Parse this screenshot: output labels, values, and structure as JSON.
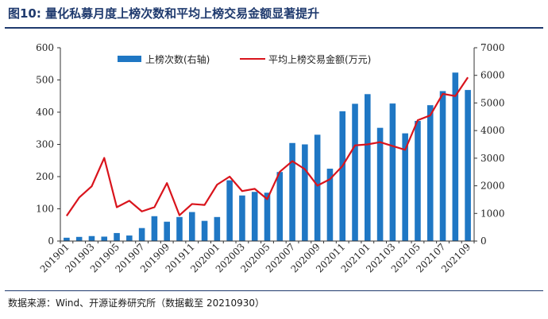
{
  "figure": {
    "title": "图10:  量化私募月度上榜次数和平均上榜交易金额显著提升",
    "source": "数据来源：Wind、开源证券研究所（数据截至 20210930）"
  },
  "chart_data": {
    "type": "bar",
    "categories": [
      "201901",
      "201902",
      "201903",
      "201904",
      "201905",
      "201906",
      "201907",
      "201908",
      "201909",
      "201910",
      "201911",
      "201912",
      "202001",
      "202002",
      "202003",
      "202004",
      "202005",
      "202006",
      "202007",
      "202008",
      "202009",
      "202010",
      "202011",
      "202012",
      "202101",
      "202102",
      "202103",
      "202104",
      "202105",
      "202106",
      "202107",
      "202108",
      "202109"
    ],
    "x_tick_labels": [
      "201901",
      "201903",
      "201905",
      "201907",
      "201909",
      "201911",
      "202001",
      "202003",
      "202005",
      "202007",
      "202009",
      "202011",
      "202101",
      "202103",
      "202105",
      "202107",
      "202109"
    ],
    "series": [
      {
        "name": "上榜次数(右轴)",
        "type": "bar",
        "axis": "right",
        "color": "#1f77c4",
        "values": [
          120,
          150,
          180,
          160,
          290,
          200,
          470,
          900,
          700,
          870,
          1050,
          730,
          870,
          2200,
          1650,
          1780,
          1750,
          2500,
          3550,
          3500,
          3850,
          2620,
          4700,
          4970,
          5320,
          4100,
          4980,
          3900,
          4350,
          4920,
          5430,
          6100,
          5470
        ]
      },
      {
        "name": "平均上榜交易金额(万元)",
        "type": "line",
        "axis": "left",
        "color": "#d9141c",
        "values": [
          78,
          135,
          170,
          258,
          105,
          125,
          92,
          105,
          180,
          80,
          115,
          112,
          175,
          200,
          155,
          162,
          130,
          215,
          248,
          223,
          172,
          192,
          233,
          297,
          300,
          307,
          295,
          283,
          375,
          390,
          457,
          450,
          508
        ]
      }
    ],
    "y_left": {
      "min": 0,
      "max": 600,
      "ticks": [
        0,
        100,
        200,
        300,
        400,
        500,
        600
      ]
    },
    "y_right": {
      "min": 0,
      "max": 7000,
      "ticks": [
        0,
        1000,
        2000,
        3000,
        4000,
        5000,
        6000,
        7000
      ]
    },
    "grid": false,
    "legend_position": "top"
  }
}
